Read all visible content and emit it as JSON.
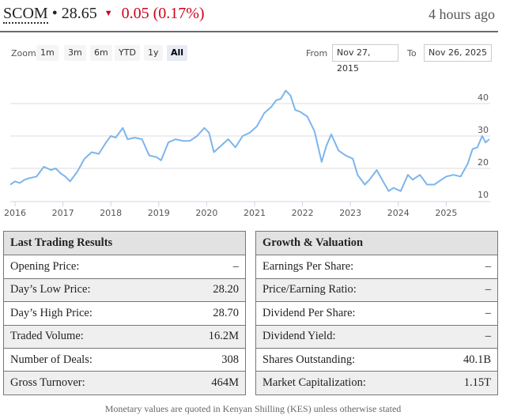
{
  "header": {
    "symbol": "SCOM",
    "separator": "•",
    "price": "28.65",
    "direction_icon": "▼",
    "change": "0.05 (0.17%)",
    "updated": "4 hours ago",
    "down_color": "#d0021b"
  },
  "range_selector": {
    "zoom_label": "Zoom",
    "buttons": [
      {
        "label": "1m",
        "active": false
      },
      {
        "label": "3m",
        "active": false
      },
      {
        "label": "6m",
        "active": false
      },
      {
        "label": "YTD",
        "active": false
      },
      {
        "label": "1y",
        "active": false
      },
      {
        "label": "All",
        "active": true
      }
    ],
    "from_label": "From",
    "from_value": "Nov 27, 2015",
    "to_label": "To",
    "to_value": "Nov 26, 2025"
  },
  "chart_data": {
    "type": "line",
    "title": "",
    "xlabel": "",
    "ylabel": "",
    "line_color": "#7cb5ec",
    "x_ticks": [
      "2016",
      "2017",
      "2018",
      "2019",
      "2020",
      "2021",
      "2022",
      "2023",
      "2024",
      "2025"
    ],
    "y_ticks": [
      10,
      20,
      30,
      40
    ],
    "ylim": [
      10,
      44
    ],
    "xlim": [
      "2015-11-27",
      "2025-11-26"
    ],
    "grid": true,
    "series": [
      {
        "name": "SCOM",
        "x": [
          2015.9,
          2016.0,
          2016.1,
          2016.2,
          2016.3,
          2016.45,
          2016.6,
          2016.75,
          2016.85,
          2016.95,
          2017.05,
          2017.15,
          2017.3,
          2017.45,
          2017.6,
          2017.75,
          2017.9,
          2018.0,
          2018.1,
          2018.25,
          2018.35,
          2018.5,
          2018.65,
          2018.8,
          2018.95,
          2019.05,
          2019.2,
          2019.35,
          2019.5,
          2019.65,
          2019.8,
          2019.95,
          2020.05,
          2020.15,
          2020.3,
          2020.45,
          2020.6,
          2020.75,
          2020.9,
          2021.05,
          2021.2,
          2021.35,
          2021.45,
          2021.55,
          2021.65,
          2021.75,
          2021.85,
          2021.95,
          2022.1,
          2022.25,
          2022.4,
          2022.5,
          2022.6,
          2022.75,
          2022.9,
          2023.05,
          2023.15,
          2023.3,
          2023.4,
          2023.55,
          2023.7,
          2023.8,
          2023.9,
          2024.05,
          2024.2,
          2024.3,
          2024.45,
          2024.6,
          2024.75,
          2024.9,
          2025.0,
          2025.15,
          2025.3,
          2025.45,
          2025.55,
          2025.65,
          2025.75,
          2025.82,
          2025.9
        ],
        "values": [
          15.0,
          16.0,
          15.5,
          16.5,
          17.0,
          17.5,
          20.5,
          19.5,
          20.0,
          18.5,
          17.5,
          16.0,
          19.0,
          23.0,
          25.0,
          24.5,
          28.0,
          30.0,
          29.5,
          32.5,
          29.0,
          29.5,
          29.0,
          24.0,
          23.5,
          22.5,
          28.0,
          29.0,
          28.5,
          28.5,
          30.0,
          32.5,
          31.0,
          25.0,
          27.0,
          29.0,
          26.5,
          30.0,
          31.0,
          33.0,
          37.0,
          39.0,
          41.0,
          41.5,
          44.0,
          42.5,
          38.0,
          37.5,
          36.0,
          31.5,
          22.0,
          27.0,
          30.5,
          25.5,
          24.0,
          23.0,
          18.0,
          15.0,
          16.5,
          19.5,
          15.5,
          13.0,
          14.0,
          13.0,
          18.0,
          16.5,
          18.0,
          15.0,
          15.0,
          16.5,
          17.5,
          18.0,
          17.5,
          21.5,
          26.0,
          26.5,
          30.0,
          28.0,
          29.0
        ]
      }
    ]
  },
  "trading_results": {
    "title": "Last Trading Results",
    "rows": [
      {
        "label": "Opening Price:",
        "value": "–"
      },
      {
        "label": "Day’s Low Price:",
        "value": "28.20"
      },
      {
        "label": "Day’s High Price:",
        "value": "28.70"
      },
      {
        "label": "Traded Volume:",
        "value": "16.2M"
      },
      {
        "label": "Number of Deals:",
        "value": "308"
      },
      {
        "label": "Gross Turnover:",
        "value": "464M"
      }
    ]
  },
  "growth_valuation": {
    "title": "Growth & Valuation",
    "rows": [
      {
        "label": "Earnings Per Share:",
        "value": "–"
      },
      {
        "label": "Price/Earning Ratio:",
        "value": "–"
      },
      {
        "label": "Dividend Per Share:",
        "value": "–"
      },
      {
        "label": "Dividend Yield:",
        "value": "–"
      },
      {
        "label": "Shares Outstanding:",
        "value": "40.1B"
      },
      {
        "label": "Market Capitalization:",
        "value": "1.15T"
      }
    ]
  },
  "footnote": "Monetary values are quoted in Kenyan Shilling (KES) unless otherwise stated"
}
